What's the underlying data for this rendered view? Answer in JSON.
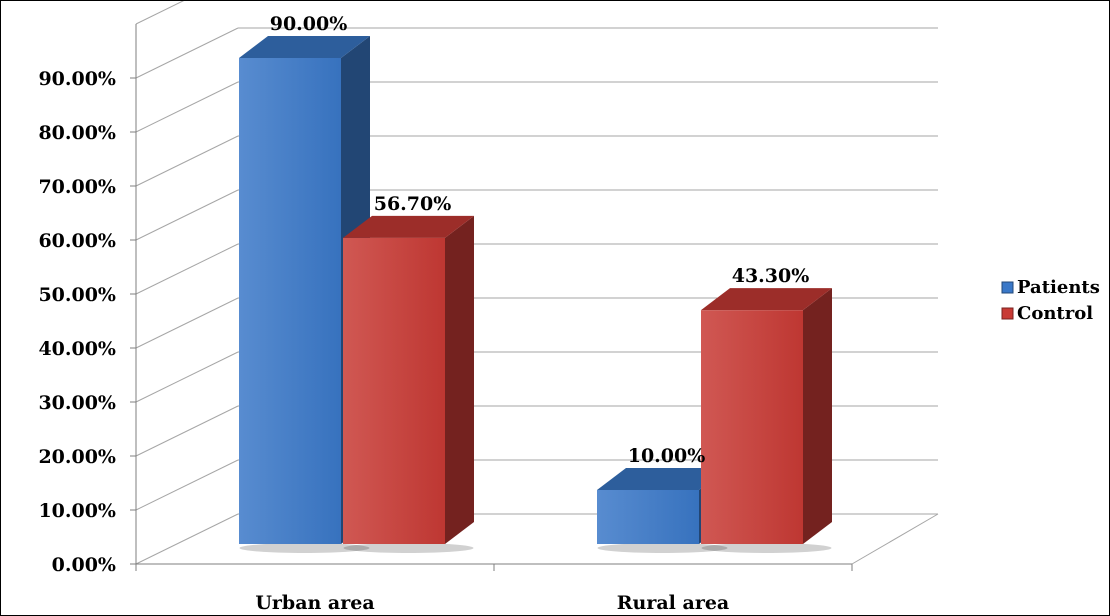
{
  "chart_data": {
    "type": "bar",
    "variant": "3d-clustered-column",
    "categories": [
      "Urban area",
      "Rural area"
    ],
    "series": [
      {
        "name": "Patients",
        "values": [
          90.0,
          10.0
        ],
        "labels": [
          "90.00%",
          "10.00%"
        ],
        "color": "#3a78c8"
      },
      {
        "name": "Control",
        "values": [
          56.7,
          43.3
        ],
        "labels": [
          "56.70%",
          "43.30%"
        ],
        "color": "#c83a35"
      }
    ],
    "ylim": [
      0,
      90
    ],
    "yticks": [
      0,
      10,
      20,
      30,
      40,
      50,
      60,
      70,
      80,
      90
    ],
    "ytick_labels": [
      "0.00%",
      "10.00%",
      "20.00%",
      "30.00%",
      "40.00%",
      "50.00%",
      "60.00%",
      "70.00%",
      "80.00%",
      "90.00%"
    ],
    "title": "",
    "xlabel": "",
    "ylabel": "",
    "grid": true,
    "legend_position": "right"
  }
}
